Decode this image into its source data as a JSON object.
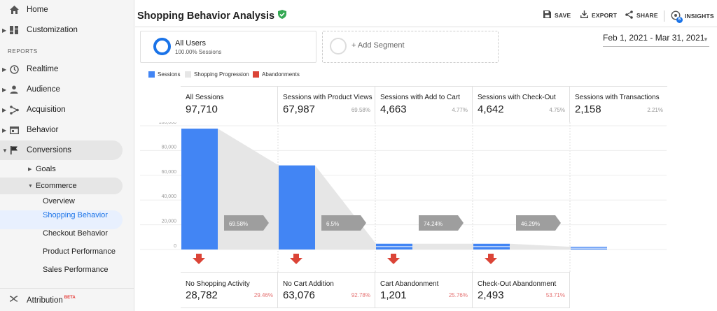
{
  "page_title": "Shopping Behavior Analysis",
  "toolbar": {
    "save": "SAVE",
    "export": "EXPORT",
    "share": "SHARE",
    "insights": "INSIGHTS",
    "insights_badge": "6"
  },
  "sidebar": {
    "home": "Home",
    "customization": "Customization",
    "reports_label": "REPORTS",
    "realtime": "Realtime",
    "audience": "Audience",
    "acquisition": "Acquisition",
    "behavior": "Behavior",
    "conversions": "Conversions",
    "goals": "Goals",
    "ecommerce": "Ecommerce",
    "overview": "Overview",
    "shopping_behavior": "Shopping Behavior",
    "checkout_behavior": "Checkout Behavior",
    "product_performance": "Product Performance",
    "sales_performance": "Sales Performance",
    "attribution": "Attribution",
    "attribution_badge": "BETA"
  },
  "segments": {
    "active_name": "All Users",
    "active_sub": "100.00% Sessions",
    "add_label": "+ Add Segment"
  },
  "date_range": "Feb 1, 2021 - Mar 31, 2021",
  "legend": {
    "sessions": "Sessions",
    "progression": "Shopping Progression",
    "abandonments": "Abandonments"
  },
  "colors": {
    "sessions": "#4285f4",
    "progression": "#e6e6e6",
    "abandonments": "#db4437",
    "accent": "#1a73e8"
  },
  "chart_data": {
    "type": "bar",
    "y_ticks": [
      "100,000",
      "80,000",
      "60,000",
      "40,000",
      "20,000",
      "0"
    ],
    "ylim": [
      0,
      100000
    ],
    "stages": [
      {
        "label": "All Sessions",
        "value": 97710,
        "display": "97,710",
        "pct": ""
      },
      {
        "label": "Sessions with Product Views",
        "value": 67987,
        "display": "67,987",
        "pct": "69.58%"
      },
      {
        "label": "Sessions with Add to Cart",
        "value": 4663,
        "display": "4,663",
        "pct": "4.77%"
      },
      {
        "label": "Sessions with Check-Out",
        "value": 4642,
        "display": "4,642",
        "pct": "4.75%"
      },
      {
        "label": "Sessions with Transactions",
        "value": 2158,
        "display": "2,158",
        "pct": "2.21%"
      }
    ],
    "progression_labels": [
      "69.58%",
      "6.5%",
      "74.24%",
      "46.29%"
    ],
    "abandonments": [
      {
        "label": "No Shopping Activity",
        "display": "28,782",
        "pct": "29.46%"
      },
      {
        "label": "No Cart Addition",
        "display": "63,076",
        "pct": "92.78%"
      },
      {
        "label": "Cart Abandonment",
        "display": "1,201",
        "pct": "25.76%"
      },
      {
        "label": "Check-Out Abandonment",
        "display": "2,493",
        "pct": "53.71%"
      }
    ]
  }
}
